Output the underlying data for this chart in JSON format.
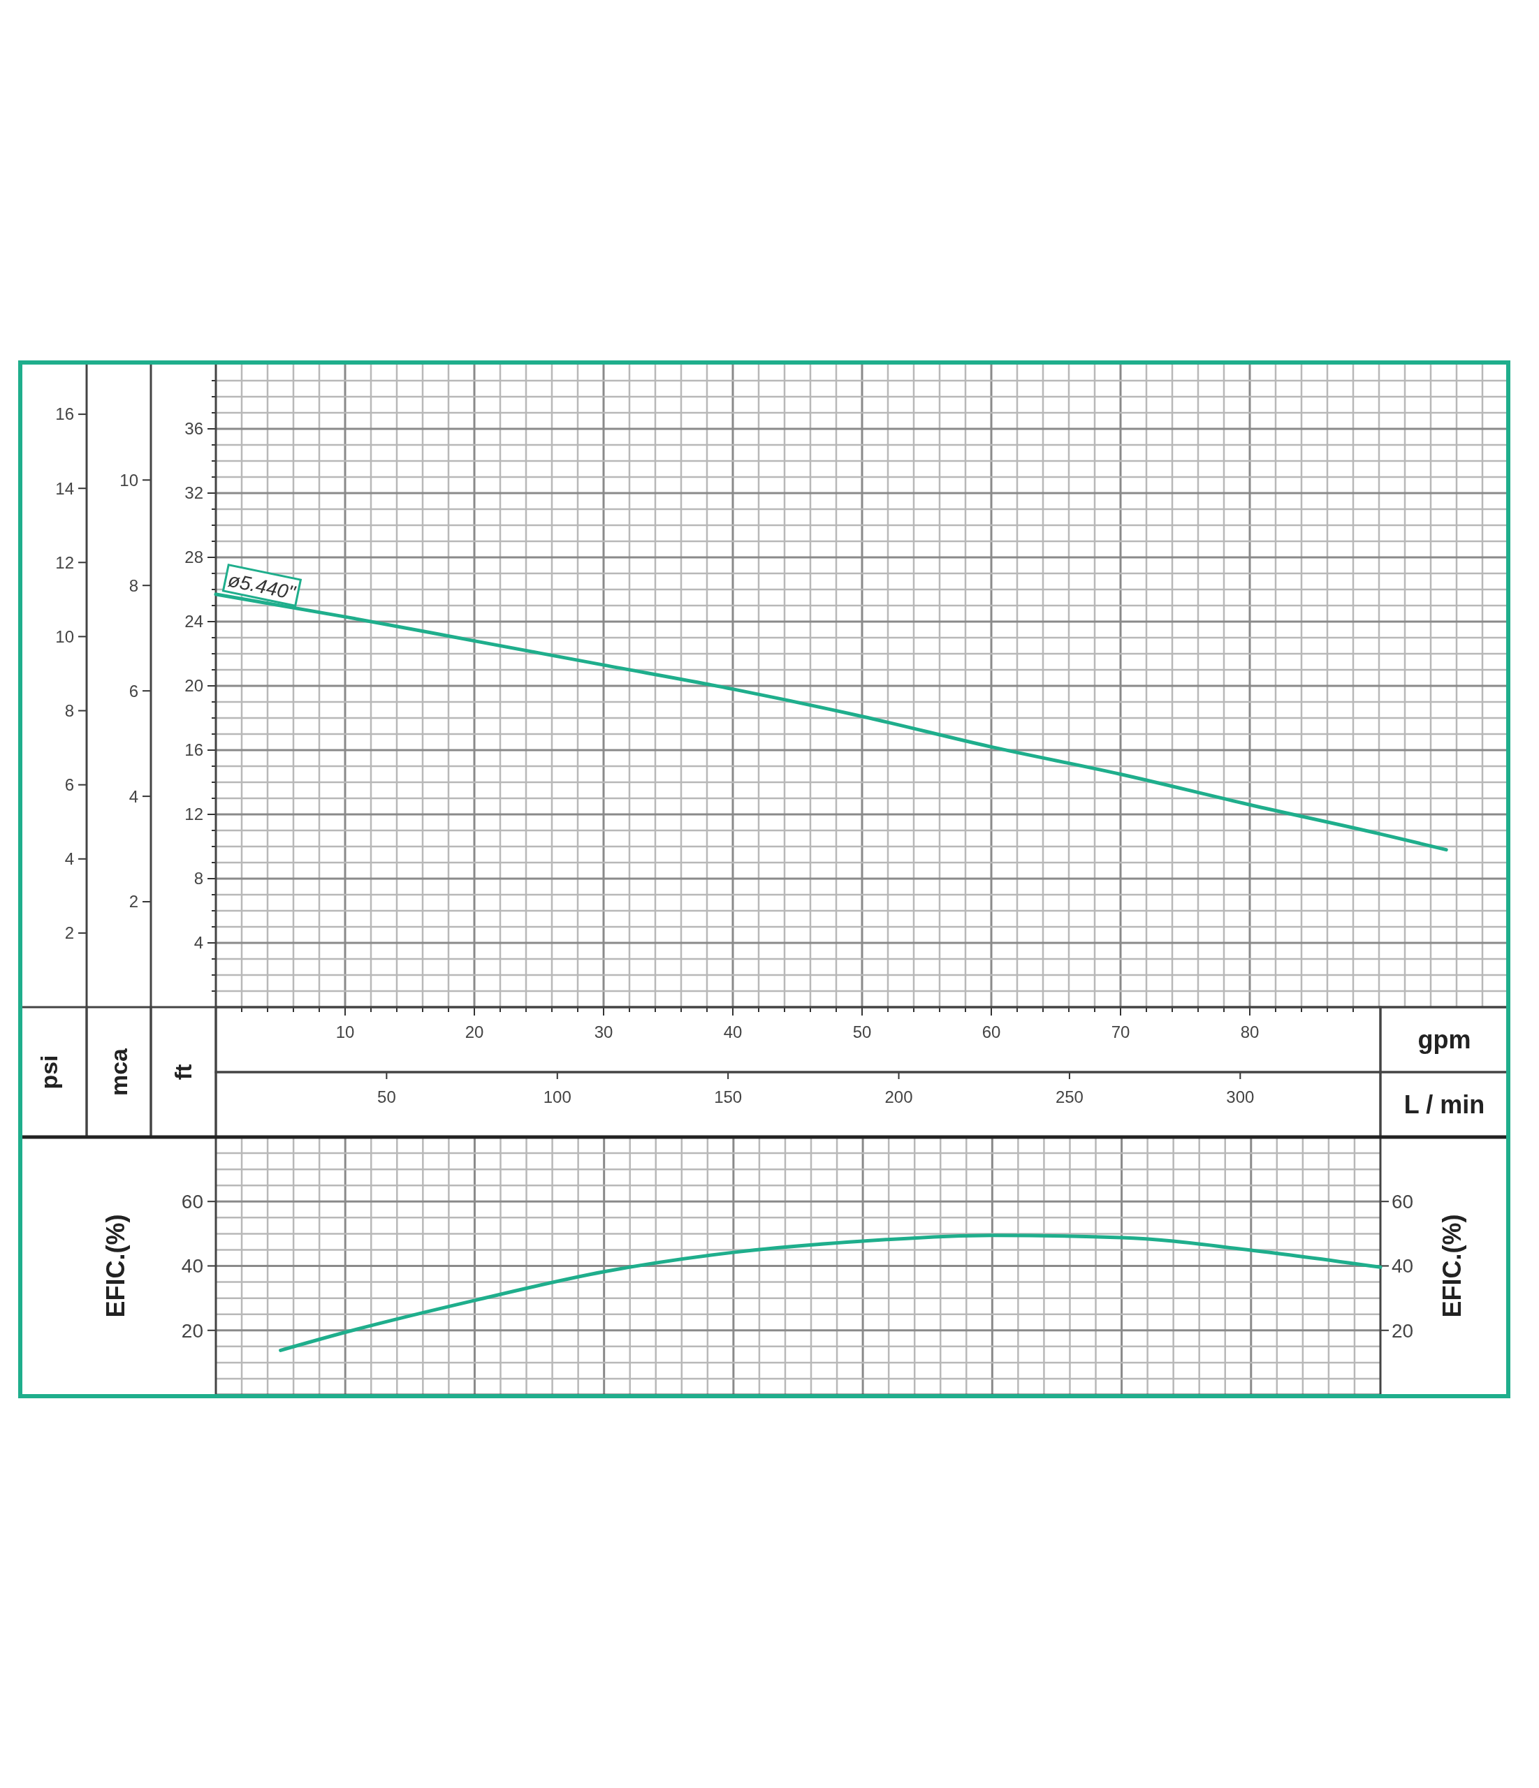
{
  "chart_data": [
    {
      "type": "line",
      "xlabel": "gpm",
      "x2label": "L / min",
      "ylabel": "ft",
      "y2label": "psi",
      "y3label": "mca",
      "grid": true,
      "xlim": [
        0,
        100
      ],
      "xticks": [
        {
          "value": 2,
          "label": null
        },
        {
          "value": 4,
          "label": null
        },
        {
          "value": 6,
          "label": null
        },
        {
          "value": 8,
          "label": null
        },
        10,
        {
          "value": 12,
          "label": null
        },
        {
          "value": 14,
          "label": null
        },
        {
          "value": 16,
          "label": null
        },
        {
          "value": 18,
          "label": null
        },
        20,
        {
          "value": 22,
          "label": null
        },
        {
          "value": 24,
          "label": null
        },
        {
          "value": 26,
          "label": null
        },
        {
          "value": 28,
          "label": null
        },
        30,
        {
          "value": 32,
          "label": null
        },
        {
          "value": 34,
          "label": null
        },
        {
          "value": 36,
          "label": null
        },
        {
          "value": 38,
          "label": null
        },
        40,
        {
          "value": 42,
          "label": null
        },
        {
          "value": 44,
          "label": null
        },
        {
          "value": 46,
          "label": null
        },
        {
          "value": 48,
          "label": null
        },
        50,
        {
          "value": 52,
          "label": null
        },
        {
          "value": 54,
          "label": null
        },
        {
          "value": 56,
          "label": null
        },
        {
          "value": 58,
          "label": null
        },
        60,
        {
          "value": 62,
          "label": null
        },
        {
          "value": 64,
          "label": null
        },
        {
          "value": 66,
          "label": null
        },
        {
          "value": 68,
          "label": null
        },
        70,
        {
          "value": 72,
          "label": null
        },
        {
          "value": 74,
          "label": null
        },
        {
          "value": 76,
          "label": null
        },
        {
          "value": 78,
          "label": null
        },
        80,
        {
          "value": 82,
          "label": null
        },
        {
          "value": 84,
          "label": null
        },
        {
          "value": 86,
          "label": null
        },
        {
          "value": 88,
          "label": null
        }
      ],
      "x2lim": [
        0,
        378.5
      ],
      "x2ticks": [
        50,
        100,
        150,
        200,
        250,
        300
      ],
      "ylim": [
        0,
        40
      ],
      "yticks": [
        {
          "value": 1,
          "label": null
        },
        {
          "value": 2,
          "label": null
        },
        {
          "value": 3,
          "label": null
        },
        4,
        {
          "value": 5,
          "label": null
        },
        {
          "value": 6,
          "label": null
        },
        {
          "value": 7,
          "label": null
        },
        8,
        {
          "value": 9,
          "label": null
        },
        {
          "value": 10,
          "label": null
        },
        {
          "value": 11,
          "label": null
        },
        12,
        {
          "value": 13,
          "label": null
        },
        {
          "value": 14,
          "label": null
        },
        {
          "value": 15,
          "label": null
        },
        16,
        {
          "value": 17,
          "label": null
        },
        {
          "value": 18,
          "label": null
        },
        {
          "value": 19,
          "label": null
        },
        20,
        {
          "value": 21,
          "label": null
        },
        {
          "value": 22,
          "label": null
        },
        {
          "value": 23,
          "label": null
        },
        24,
        {
          "value": 25,
          "label": null
        },
        {
          "value": 26,
          "label": null
        },
        {
          "value": 27,
          "label": null
        },
        28,
        {
          "value": 29,
          "label": null
        },
        {
          "value": 30,
          "label": null
        },
        {
          "value": 31,
          "label": null
        },
        32,
        {
          "value": 33,
          "label": null
        },
        {
          "value": 34,
          "label": null
        },
        {
          "value": 35,
          "label": null
        },
        36,
        {
          "value": 37,
          "label": null
        },
        {
          "value": 38,
          "label": null
        },
        {
          "value": 39,
          "label": null
        }
      ],
      "y2lim": [
        0,
        17.34
      ],
      "y2ticks": [
        2,
        4,
        6,
        8,
        10,
        12,
        14,
        16
      ],
      "y3lim": [
        0,
        12.19
      ],
      "y3ticks": [
        2,
        4,
        6,
        8,
        10
      ],
      "series": [
        {
          "name": "ø5.440\"",
          "color": "#1fae8c",
          "x": [
            0,
            10,
            20,
            30,
            40,
            50,
            60,
            70,
            80,
            90,
            95.2
          ],
          "values": [
            25.7,
            24.3,
            22.8,
            21.3,
            19.8,
            18.1,
            16.2,
            14.5,
            12.6,
            10.8,
            9.8
          ]
        }
      ]
    },
    {
      "type": "line",
      "ylabel": "EFIC.(%)",
      "y2label": "EFIC.(%)",
      "grid": true,
      "tick_labels": "y",
      "xlim": [
        0,
        90
      ],
      "xticks": [
        {
          "value": 2,
          "label": null
        },
        {
          "value": 4,
          "label": null
        },
        {
          "value": 6,
          "label": null
        },
        {
          "value": 8,
          "label": null
        },
        10,
        {
          "value": 12,
          "label": null
        },
        {
          "value": 14,
          "label": null
        },
        {
          "value": 16,
          "label": null
        },
        {
          "value": 18,
          "label": null
        },
        20,
        {
          "value": 22,
          "label": null
        },
        {
          "value": 24,
          "label": null
        },
        {
          "value": 26,
          "label": null
        },
        {
          "value": 28,
          "label": null
        },
        30,
        {
          "value": 32,
          "label": null
        },
        {
          "value": 34,
          "label": null
        },
        {
          "value": 36,
          "label": null
        },
        {
          "value": 38,
          "label": null
        },
        40,
        {
          "value": 42,
          "label": null
        },
        {
          "value": 44,
          "label": null
        },
        {
          "value": 46,
          "label": null
        },
        {
          "value": 48,
          "label": null
        },
        50,
        {
          "value": 52,
          "label": null
        },
        {
          "value": 54,
          "label": null
        },
        {
          "value": 56,
          "label": null
        },
        {
          "value": 58,
          "label": null
        },
        60,
        {
          "value": 62,
          "label": null
        },
        {
          "value": 64,
          "label": null
        },
        {
          "value": 66,
          "label": null
        },
        {
          "value": 68,
          "label": null
        },
        70,
        {
          "value": 72,
          "label": null
        },
        {
          "value": 74,
          "label": null
        },
        {
          "value": 76,
          "label": null
        },
        {
          "value": 78,
          "label": null
        },
        80,
        {
          "value": 82,
          "label": null
        },
        {
          "value": 84,
          "label": null
        },
        {
          "value": 86,
          "label": null
        },
        {
          "value": 88,
          "label": null
        }
      ],
      "ylim": [
        0,
        80
      ],
      "yticks": [
        {
          "value": 5,
          "label": null
        },
        {
          "value": 10,
          "label": null
        },
        {
          "value": 15,
          "label": null
        },
        20,
        {
          "value": 25,
          "label": null
        },
        {
          "value": 30,
          "label": null
        },
        {
          "value": 35,
          "label": null
        },
        40,
        {
          "value": 45,
          "label": null
        },
        {
          "value": 50,
          "label": null
        },
        {
          "value": 55,
          "label": null
        },
        60,
        {
          "value": 65,
          "label": null
        },
        {
          "value": 70,
          "label": null
        },
        {
          "value": 75,
          "label": null
        }
      ],
      "y2lim": [
        0,
        80
      ],
      "y2ticks": [
        20,
        40,
        60
      ],
      "series": [
        {
          "color": "#1fae8c",
          "x": [
            5,
            10,
            20,
            30,
            40,
            50,
            60,
            70,
            80,
            90
          ],
          "values": [
            13.8,
            19.4,
            29.3,
            38.2,
            44.2,
            47.7,
            49.5,
            48.8,
            44.9,
            39.6
          ]
        }
      ]
    }
  ]
}
